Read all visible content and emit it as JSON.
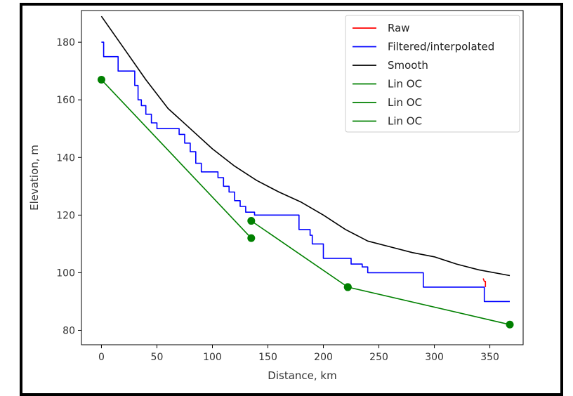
{
  "chart_data": {
    "type": "line",
    "title": "",
    "xlabel": "Distance, km",
    "ylabel": "Elevation, m",
    "xlim": [
      -18,
      380
    ],
    "ylim": [
      75,
      191
    ],
    "xticks": [
      0,
      50,
      100,
      150,
      200,
      250,
      300,
      350
    ],
    "yticks": [
      80,
      100,
      120,
      140,
      160,
      180
    ],
    "grid": false,
    "legend_position": "top-right",
    "series": [
      {
        "name": "Raw",
        "color": "#ff0000",
        "x": [
          344,
          345,
          346,
          346
        ],
        "y": [
          98,
          97,
          97,
          95
        ]
      },
      {
        "name": "Filtered/interpolated",
        "color": "#0000ff",
        "x": [
          0,
          0,
          2,
          2,
          15,
          15,
          30,
          30,
          33,
          33,
          36,
          36,
          40,
          40,
          45,
          45,
          50,
          50,
          70,
          70,
          75,
          75,
          80,
          80,
          85,
          85,
          90,
          90,
          95,
          95,
          105,
          105,
          110,
          110,
          115,
          115,
          120,
          120,
          125,
          125,
          130,
          130,
          135,
          135,
          138,
          138,
          178,
          178,
          188,
          188,
          190,
          190,
          200,
          200,
          208,
          208,
          225,
          225,
          235,
          235,
          240,
          240,
          243,
          243,
          290,
          290,
          345,
          345,
          368
        ],
        "y": [
          180,
          180,
          180,
          175,
          175,
          170,
          170,
          165,
          165,
          160,
          160,
          158,
          158,
          155,
          155,
          152,
          152,
          150,
          150,
          148,
          148,
          145,
          145,
          142,
          142,
          138,
          138,
          135,
          135,
          135,
          135,
          133,
          133,
          130,
          130,
          128,
          128,
          125,
          125,
          123,
          123,
          121,
          121,
          121,
          121,
          120,
          120,
          115,
          115,
          113,
          113,
          110,
          110,
          105,
          105,
          105,
          105,
          103,
          103,
          102,
          102,
          100,
          100,
          100,
          100,
          95,
          95,
          90,
          90
        ]
      },
      {
        "name": "Smooth",
        "color": "#000000",
        "x": [
          0,
          20,
          40,
          60,
          80,
          100,
          120,
          140,
          160,
          180,
          200,
          220,
          240,
          260,
          280,
          300,
          320,
          340,
          368
        ],
        "y": [
          189,
          178,
          167,
          157,
          150,
          143,
          137,
          132,
          128,
          124.5,
          120,
          115,
          111,
          109,
          107,
          105.5,
          103,
          101,
          99
        ]
      },
      {
        "name": "Lin OC",
        "color": "#008000",
        "x": [
          0,
          135
        ],
        "y": [
          167,
          112
        ]
      },
      {
        "name": "Lin OC",
        "color": "#008000",
        "x": [
          135,
          222
        ],
        "y": [
          118,
          95
        ]
      },
      {
        "name": "Lin OC",
        "color": "#008000",
        "x": [
          222,
          368
        ],
        "y": [
          95,
          82
        ]
      }
    ]
  }
}
